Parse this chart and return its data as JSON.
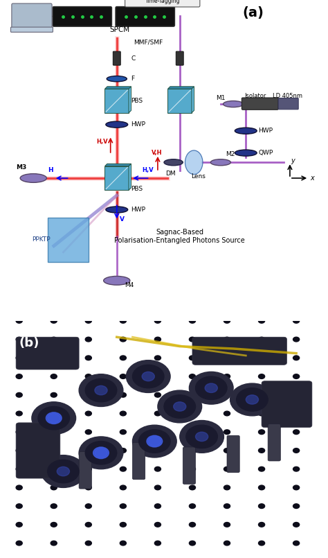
{
  "fig_width": 4.74,
  "fig_height": 8.05,
  "dpi": 100,
  "panel_a_label": "(a)",
  "panel_b_label": "(b)",
  "border_color_b": "#cc0000",
  "bg_color": "#ffffff",
  "title_text": "Sagnac-Based\nPolarisation-Entangled Photons Source",
  "components": {
    "SPCM": "SPCM",
    "MMF_SMF": "MMF/SMF",
    "C": "C",
    "F": "F",
    "PBS_upper": "PBS",
    "HWP_upper": "HWP",
    "PBS_center": "PBS",
    "HWP_lower": "HWP",
    "DM": "DM",
    "Lens": "Lens",
    "M1": "M1",
    "M2": "M2",
    "M3": "M3",
    "M4": "M4",
    "Isolator": "Isolator",
    "LD": "LD 405nm",
    "HWP_right": "HWP",
    "QWP_right": "QWP",
    "PPKTP": "PPKTP",
    "CTT": "Coincidence\nTime-Tagging"
  },
  "arrow_labels": {
    "H_left": "H",
    "HV_up_left": "H,V",
    "VH_up_right": "V,H",
    "HV_left_right": "H,V",
    "V_down": "V"
  },
  "beam_colors": {
    "pump": "#9966cc",
    "signal_idler_red": "#ff4444",
    "signal_idler_pink": "#ff99cc"
  }
}
